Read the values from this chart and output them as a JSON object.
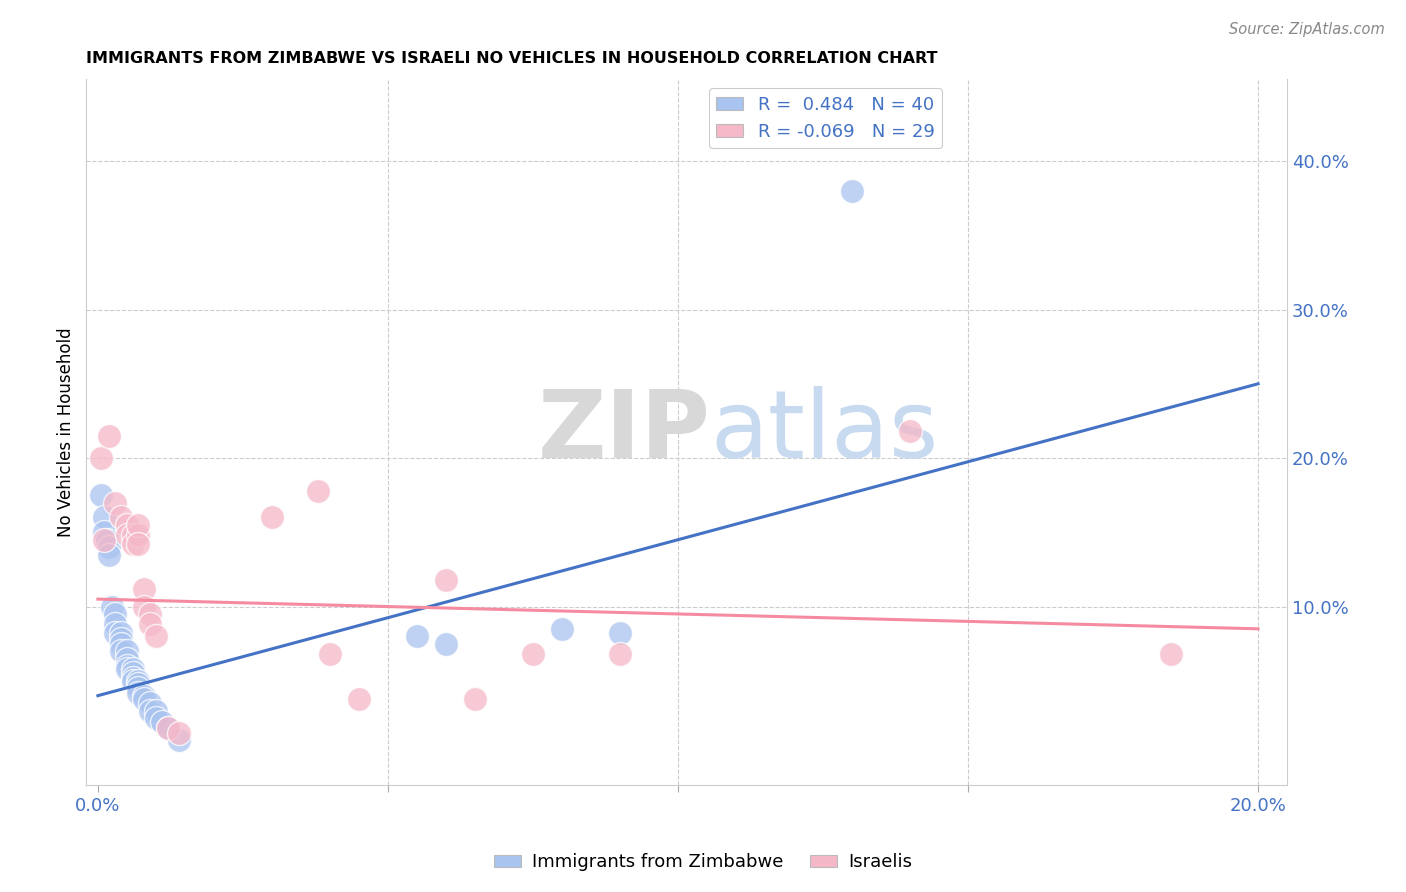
{
  "title": "IMMIGRANTS FROM ZIMBABWE VS ISRAELI NO VEHICLES IN HOUSEHOLD CORRELATION CHART",
  "source": "Source: ZipAtlas.com",
  "ylabel": "No Vehicles in Household",
  "xlim": [
    -0.002,
    0.205
  ],
  "ylim": [
    -0.02,
    0.455
  ],
  "x_ticks": [
    0.0,
    0.05,
    0.1,
    0.15,
    0.2
  ],
  "y_ticks_right": [
    0.1,
    0.2,
    0.3,
    0.4
  ],
  "y_tick_labels_right": [
    "10.0%",
    "20.0%",
    "30.0%",
    "40.0%"
  ],
  "watermark_zip": "ZIP",
  "watermark_atlas": "atlas",
  "legend_R1": "R =  0.484",
  "legend_N1": "N = 40",
  "legend_R2": "R = -0.069",
  "legend_N2": "N = 29",
  "blue_color": "#aac4f0",
  "pink_color": "#f5b8c8",
  "blue_line_color": "#4472c4",
  "pink_line_color": "#f48ba0",
  "label1": "Immigrants from Zimbabwe",
  "label2": "Israelis",
  "blue_scatter": [
    [
      0.0005,
      0.175
    ],
    [
      0.001,
      0.16
    ],
    [
      0.001,
      0.15
    ],
    [
      0.0015,
      0.145
    ],
    [
      0.002,
      0.14
    ],
    [
      0.002,
      0.135
    ],
    [
      0.0025,
      0.1
    ],
    [
      0.003,
      0.095
    ],
    [
      0.003,
      0.088
    ],
    [
      0.003,
      0.082
    ],
    [
      0.004,
      0.082
    ],
    [
      0.004,
      0.078
    ],
    [
      0.004,
      0.075
    ],
    [
      0.004,
      0.07
    ],
    [
      0.005,
      0.07
    ],
    [
      0.005,
      0.065
    ],
    [
      0.005,
      0.06
    ],
    [
      0.005,
      0.058
    ],
    [
      0.006,
      0.058
    ],
    [
      0.006,
      0.055
    ],
    [
      0.006,
      0.052
    ],
    [
      0.006,
      0.05
    ],
    [
      0.007,
      0.05
    ],
    [
      0.007,
      0.048
    ],
    [
      0.007,
      0.045
    ],
    [
      0.007,
      0.042
    ],
    [
      0.008,
      0.04
    ],
    [
      0.008,
      0.038
    ],
    [
      0.009,
      0.035
    ],
    [
      0.009,
      0.03
    ],
    [
      0.01,
      0.03
    ],
    [
      0.01,
      0.025
    ],
    [
      0.011,
      0.022
    ],
    [
      0.012,
      0.018
    ],
    [
      0.014,
      0.01
    ],
    [
      0.055,
      0.08
    ],
    [
      0.06,
      0.075
    ],
    [
      0.08,
      0.085
    ],
    [
      0.09,
      0.082
    ],
    [
      0.13,
      0.38
    ]
  ],
  "pink_scatter": [
    [
      0.0005,
      0.2
    ],
    [
      0.001,
      0.145
    ],
    [
      0.002,
      0.215
    ],
    [
      0.003,
      0.17
    ],
    [
      0.004,
      0.16
    ],
    [
      0.005,
      0.155
    ],
    [
      0.005,
      0.148
    ],
    [
      0.006,
      0.148
    ],
    [
      0.006,
      0.142
    ],
    [
      0.007,
      0.148
    ],
    [
      0.007,
      0.155
    ],
    [
      0.007,
      0.142
    ],
    [
      0.008,
      0.112
    ],
    [
      0.008,
      0.1
    ],
    [
      0.009,
      0.095
    ],
    [
      0.009,
      0.088
    ],
    [
      0.01,
      0.08
    ],
    [
      0.012,
      0.018
    ],
    [
      0.014,
      0.015
    ],
    [
      0.03,
      0.16
    ],
    [
      0.038,
      0.178
    ],
    [
      0.04,
      0.068
    ],
    [
      0.045,
      0.038
    ],
    [
      0.06,
      0.118
    ],
    [
      0.065,
      0.038
    ],
    [
      0.075,
      0.068
    ],
    [
      0.09,
      0.068
    ],
    [
      0.14,
      0.218
    ],
    [
      0.185,
      0.068
    ]
  ],
  "blue_line_x": [
    0.0,
    0.2
  ],
  "blue_line_y": [
    0.04,
    0.25
  ],
  "pink_line_x": [
    0.0,
    0.2
  ],
  "pink_line_y": [
    0.105,
    0.085
  ]
}
